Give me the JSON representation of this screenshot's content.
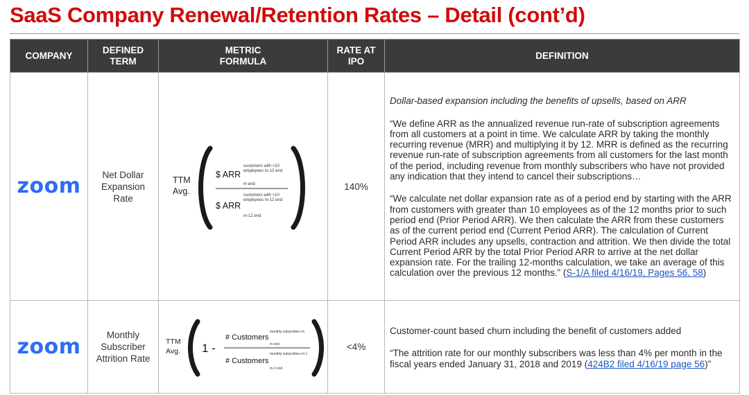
{
  "header": {
    "title": "SaaS Company Renewal/Retention Rates – Detail (cont’d)"
  },
  "table": {
    "columns": {
      "company": "COMPANY",
      "term_line1": "DEFINED",
      "term_line2": "TERM",
      "formula_line1": "METRIC",
      "formula_line2": "FORMULA",
      "rate_line1": "RATE AT",
      "rate_line2": "IPO",
      "definition": "DEFINITION"
    },
    "rows": [
      {
        "company_logo_text": "zoom",
        "term_line1": "Net Dollar",
        "term_line2": "Expansion",
        "term_line3": "Rate",
        "formula": {
          "prefix_line1": "TTM",
          "prefix_line2": "Avg.",
          "numerator": "$ ARR",
          "numerator_sup_line1": "customers with >10",
          "numerator_sup_line2": "employees m-12 end",
          "numerator_sub": "m end",
          "denominator": "$ ARR",
          "denominator_sup_line1": "customers with >10",
          "denominator_sup_line2": "employees m-12 end",
          "denominator_sub": "m-12 end"
        },
        "rate": "140%",
        "definition_intro": "Dollar-based expansion including the benefits of upsells, based on ARR",
        "definition_p1": "“We define ARR as the annualized revenue run-rate of subscription agreements from all customers at a point in time. We calculate ARR by taking the monthly recurring revenue (MRR) and multiplying it by 12. MRR is defined as the recurring revenue run-rate of subscription agreements from all customers for the last month of the period, including revenue from monthly subscribers who have not provided any indication that they intend to cancel their subscriptions…",
        "definition_p2": "“We calculate net dollar expansion rate as of a period end by starting with the ARR from customers with greater than 10 employees as of the 12 months prior to such period end (Prior Period ARR). We then calculate the ARR from these customers as of the current period end (Current Period ARR). The calculation of Current Period ARR includes any upsells, contraction and attrition. We then divide the total Current Period ARR by the total Prior Period ARR to arrive at the net dollar expansion rate. For the trailing 12-months calculation, we take an average of this calculation over the previous 12 months.” (",
        "source_link": "S-1/A filed 4/16/19, Pages 56, 58",
        "definition_p2_end": ")"
      },
      {
        "company_logo_text": "zoom",
        "term_line1": "Monthly",
        "term_line2": "Subscriber",
        "term_line3": "Attrition Rate",
        "formula": {
          "prefix_line1": "TTM",
          "prefix_line2": "Avg.",
          "one_minus": "1 -",
          "numerator": "# Customers",
          "numerator_sup": "monthly subscribers m",
          "numerator_sub": "m end",
          "denominator": "# Customers",
          "denominator_sup": "monthly subscribers m-1",
          "denominator_sub": "m-1 end"
        },
        "rate": "<4%",
        "definition_intro": "Customer-count based churn including the benefit of customers added",
        "definition_p1": "“The attrition rate for our monthly subscribers was less than 4% per month in the fiscal years ended January 31, 2018 and 2019 (",
        "source_link": "424B2 filed 4/16/19 page 56",
        "definition_p1_end": ")”"
      }
    ]
  },
  "colors": {
    "title": "#d10a0a",
    "header_bg": "#3a3b3d",
    "zoom_blue": "#2d6cf5",
    "link": "#1a56c4"
  }
}
